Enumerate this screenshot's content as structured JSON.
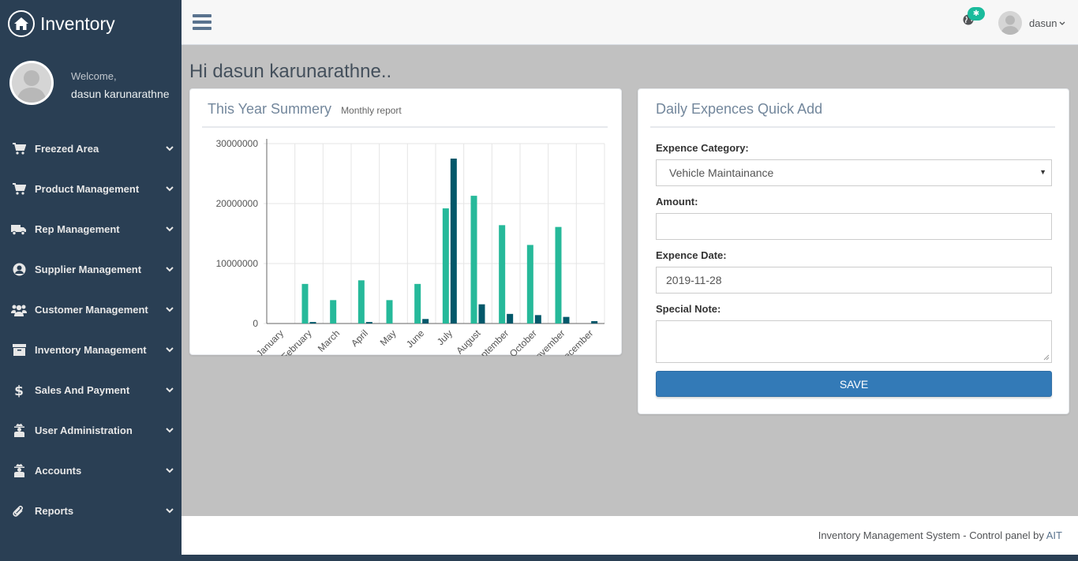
{
  "app": {
    "title": "Inventory"
  },
  "profile": {
    "welcome": "Welcome,",
    "name": "dasun karunarathne"
  },
  "sidebar": {
    "items": [
      {
        "label": "Freezed Area",
        "icon": "cart-icon"
      },
      {
        "label": "Product Management",
        "icon": "cart-icon"
      },
      {
        "label": "Rep Management",
        "icon": "truck-icon"
      },
      {
        "label": "Supplier Management",
        "icon": "user-circle-icon"
      },
      {
        "label": "Customer Management",
        "icon": "users-icon"
      },
      {
        "label": "Inventory Management",
        "icon": "archive-icon"
      },
      {
        "label": "Sales And Payment",
        "icon": "dollar-icon"
      },
      {
        "label": "User Administration",
        "icon": "user-secret-icon"
      },
      {
        "label": "Accounts",
        "icon": "user-secret-icon"
      },
      {
        "label": "Reports",
        "icon": "paperclip-icon"
      }
    ]
  },
  "topbar": {
    "username": "dasun",
    "notification_badge": "✱"
  },
  "main": {
    "greeting": "Hi dasun karunarathne.."
  },
  "chart_panel": {
    "title": "This Year Summery",
    "subtitle": "Monthly report"
  },
  "chart_data": {
    "type": "bar",
    "categories": [
      "January",
      "February",
      "March",
      "April",
      "May",
      "June",
      "July",
      "August",
      "September",
      "October",
      "November",
      "December"
    ],
    "series": [
      {
        "values": [
          0,
          6600000,
          3900000,
          7200000,
          3900000,
          6600000,
          19200000,
          21300000,
          16400000,
          13100000,
          16100000,
          0
        ],
        "color": "#26b99a"
      },
      {
        "values": [
          0,
          250000,
          0,
          250000,
          0,
          750000,
          27500000,
          3200000,
          1600000,
          1400000,
          1100000,
          400000
        ],
        "color": "#03586a"
      }
    ],
    "ylim": [
      0,
      30000000
    ],
    "yticks": [
      "30000000",
      "20000000",
      "10000000",
      "0"
    ],
    "grid": true
  },
  "expense_form": {
    "title": "Daily Expences Quick Add",
    "category_label": "Expence Category:",
    "category_value": "Vehicle Maintainance",
    "amount_label": "Amount:",
    "amount_value": "",
    "date_label": "Expence Date:",
    "date_value": "2019-11-28",
    "note_label": "Special Note:",
    "note_value": "",
    "save_label": "SAVE"
  },
  "footer": {
    "text": "Inventory Management System - Control panel by ",
    "link": "AIT"
  },
  "colors": {
    "sidebar": "#2a3f54",
    "accent": "#26b99a",
    "dark_series": "#03586a",
    "primary_button": "#337ab7",
    "content_bg": "#c1c1c1"
  }
}
